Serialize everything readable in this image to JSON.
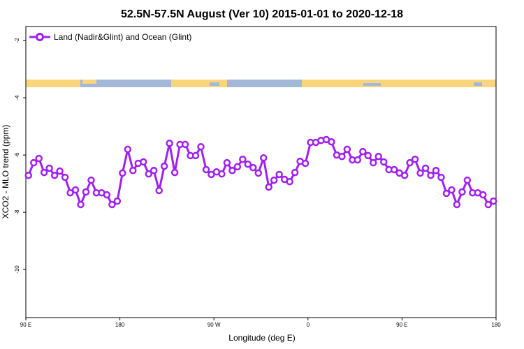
{
  "chart_data": {
    "type": "line",
    "title": "52.5N-57.5N August (Ver 10)   2015-01-01 to 2020-12-18",
    "x_label": "Longitude (deg E)",
    "y_label": "XCO2 - MLO trend (ppm)",
    "xlim": [
      90,
      540
    ],
    "ylim": [
      -11.68,
      -1.51
    ],
    "xticks": [
      {
        "value": 90,
        "label": "90 E"
      },
      180,
      {
        "value": 270,
        "label": "90 W"
      },
      {
        "value": 360,
        "label": "0"
      },
      {
        "value": 450,
        "label": "90 E"
      },
      {
        "value": 540,
        "label": "180"
      }
    ],
    "yticks": [
      -2,
      -4,
      -6,
      -8,
      -10
    ],
    "legend": "top-left",
    "x": [
      92.5,
      97.5,
      102.5,
      107.5,
      112.5,
      117.5,
      122.5,
      127.5,
      132.5,
      137.5,
      142.5,
      147.5,
      152.5,
      157.5,
      162.5,
      167.5,
      172.5,
      177.5,
      182.5,
      187.5,
      192.5,
      197.5,
      202.5,
      207.5,
      212.5,
      217.5,
      222.5,
      227.5,
      232.5,
      237.5,
      242.5,
      247.5,
      252.5,
      257.5,
      262.5,
      267.5,
      272.5,
      277.5,
      282.5,
      287.5,
      292.5,
      297.5,
      302.5,
      307.5,
      312.5,
      317.5,
      322.5,
      327.5,
      332.5,
      337.5,
      342.5,
      347.5,
      352.5,
      357.5,
      362.5,
      367.5,
      372.5,
      377.5,
      382.5,
      387.5,
      392.5,
      397.5,
      402.5,
      407.5,
      412.5,
      417.5,
      422.5,
      427.5,
      432.5,
      437.5,
      442.5,
      447.5,
      452.5,
      457.5,
      462.5,
      467.5,
      472.5,
      477.5,
      482.5,
      487.5,
      492.5,
      497.5,
      502.5,
      507.5,
      512.5,
      517.5,
      522.5,
      527.5,
      532.5,
      537.5
    ],
    "series": [
      {
        "name": "Land (Nadir&Glint) and Ocean (Glint)",
        "color": "#a020f0",
        "values": [
          -6.71,
          -6.27,
          -6.12,
          -6.61,
          -6.46,
          -6.71,
          -6.56,
          -6.78,
          -7.32,
          -7.22,
          -7.73,
          -7.29,
          -6.88,
          -7.32,
          -7.32,
          -7.39,
          -7.73,
          -7.61,
          -6.63,
          -5.8,
          -6.54,
          -6.29,
          -6.24,
          -6.66,
          -6.54,
          -7.24,
          -6.39,
          -5.59,
          -6.61,
          -5.63,
          -5.63,
          -6.02,
          -6.02,
          -5.71,
          -6.51,
          -6.68,
          -6.59,
          -6.66,
          -6.27,
          -6.54,
          -6.41,
          -6.15,
          -6.32,
          -6.44,
          -6.63,
          -6.1,
          -7.12,
          -6.88,
          -6.68,
          -6.85,
          -6.93,
          -6.61,
          -6.22,
          -6.29,
          -5.56,
          -5.56,
          -5.49,
          -5.46,
          -5.54,
          -6.0,
          -6.05,
          -5.8,
          -6.17,
          -6.17,
          -5.88,
          -6.02,
          -6.27,
          -6.05,
          -6.24,
          -6.51,
          -6.51,
          -6.63,
          -6.71,
          -6.27,
          -6.15,
          -6.63,
          -6.46,
          -6.71,
          -6.54,
          -6.78,
          -7.34,
          -7.22,
          -7.73,
          -7.29,
          -6.88,
          -7.32,
          -7.32,
          -7.39,
          -7.73,
          -7.61
        ]
      }
    ]
  }
}
